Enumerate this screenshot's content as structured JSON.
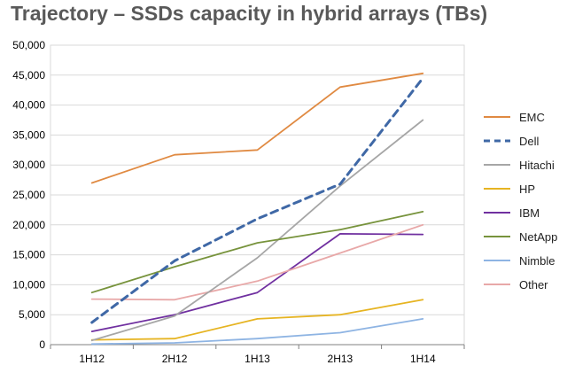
{
  "chart_data": {
    "type": "line",
    "title": "Trajectory – SSDs capacity in hybrid arrays (TBs)",
    "xlabel": "",
    "ylabel": "",
    "categories": [
      "1H12",
      "2H12",
      "1H13",
      "2H13",
      "1H14"
    ],
    "ylim": [
      0,
      50000
    ],
    "yticks": [
      "0",
      "5,000",
      "10,000",
      "15,000",
      "20,000",
      "25,000",
      "30,000",
      "35,000",
      "40,000",
      "45,000",
      "50,000"
    ],
    "grid": true,
    "legend_position": "right",
    "series": [
      {
        "name": "EMC",
        "color": "#e08a42",
        "dashed": false,
        "values": [
          27000,
          31700,
          32500,
          43000,
          45300
        ]
      },
      {
        "name": "Dell",
        "color": "#3f68a6",
        "dashed": true,
        "values": [
          3700,
          14000,
          21000,
          26800,
          44500
        ]
      },
      {
        "name": "Hitachi",
        "color": "#a6a6a6",
        "dashed": false,
        "values": [
          700,
          4800,
          14500,
          26500,
          37500
        ]
      },
      {
        "name": "HP",
        "color": "#e6b422",
        "dashed": false,
        "values": [
          800,
          1000,
          4300,
          5000,
          7500
        ]
      },
      {
        "name": "IBM",
        "color": "#7030a0",
        "dashed": false,
        "values": [
          2200,
          5000,
          8700,
          18500,
          18400
        ]
      },
      {
        "name": "NetApp",
        "color": "#77933c",
        "dashed": false,
        "values": [
          8700,
          13000,
          17000,
          19200,
          22200
        ]
      },
      {
        "name": "Nimble",
        "color": "#8eb4e3",
        "dashed": false,
        "values": [
          100,
          300,
          1000,
          2000,
          4300
        ]
      },
      {
        "name": "Other",
        "color": "#e8a8a8",
        "dashed": false,
        "values": [
          7600,
          7500,
          10600,
          15300,
          20000
        ]
      }
    ]
  }
}
